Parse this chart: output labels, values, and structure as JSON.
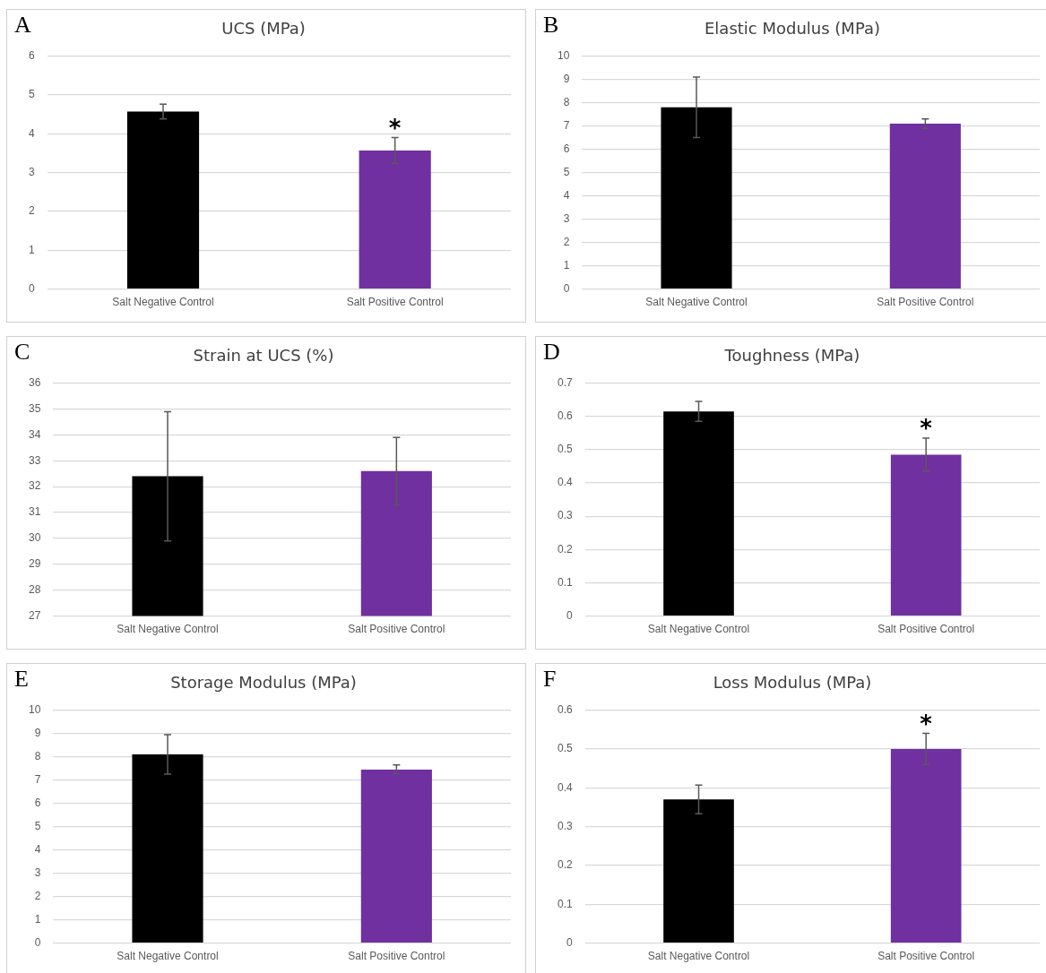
{
  "chart_data": [
    {
      "type": "bar",
      "title": "UCS (MPa)",
      "categories": [
        "Salt Negative Control",
        "Salt Positive Control"
      ],
      "values": [
        4.57,
        3.57
      ],
      "errors": [
        0.19,
        0.33
      ],
      "colors": [
        "#000000",
        "#7030a0"
      ],
      "ylim": [
        0,
        6
      ],
      "yticks": [
        0,
        1,
        2,
        3,
        4,
        5,
        6
      ],
      "grid": "y",
      "legend": false,
      "annotations": [
        "A",
        "*"
      ]
    },
    {
      "type": "bar",
      "title": "Elastic Modulus (MPa)",
      "categories": [
        "Salt Negative Control",
        "Salt Positive Control"
      ],
      "values": [
        7.8,
        7.1
      ],
      "errors": [
        1.3,
        0.2
      ],
      "colors": [
        "#000000",
        "#7030a0"
      ],
      "ylim": [
        0,
        10
      ],
      "yticks": [
        0,
        1,
        2,
        3,
        4,
        5,
        6,
        7,
        8,
        9,
        10
      ],
      "grid": "y",
      "legend": false,
      "annotations": [
        "B"
      ]
    },
    {
      "type": "bar",
      "title": "Strain at UCS (%)",
      "categories": [
        "Salt Negative Control",
        "Salt Positive Control"
      ],
      "values": [
        32.4,
        32.6
      ],
      "errors": [
        2.5,
        1.3
      ],
      "colors": [
        "#000000",
        "#7030a0"
      ],
      "ylim": [
        27,
        36
      ],
      "yticks": [
        27,
        28,
        29,
        30,
        31,
        32,
        33,
        34,
        35,
        36
      ],
      "grid": "y",
      "legend": false,
      "annotations": [
        "C"
      ]
    },
    {
      "type": "bar",
      "title": "Toughness (MPa)",
      "categories": [
        "Salt Negative Control",
        "Salt Positive Control"
      ],
      "values": [
        0.615,
        0.485
      ],
      "errors": [
        0.03,
        0.05
      ],
      "colors": [
        "#000000",
        "#7030a0"
      ],
      "ylim": [
        0,
        0.7
      ],
      "yticks": [
        0,
        0.1,
        0.2,
        0.3,
        0.4,
        0.5,
        0.6,
        0.7
      ],
      "grid": "y",
      "legend": false,
      "annotations": [
        "D",
        "*"
      ]
    },
    {
      "type": "bar",
      "title": "Storage Modulus (MPa)",
      "categories": [
        "Salt Negative Control",
        "Salt Positive Control"
      ],
      "values": [
        8.1,
        7.45
      ],
      "errors": [
        0.85,
        0.2
      ],
      "colors": [
        "#000000",
        "#7030a0"
      ],
      "ylim": [
        0,
        10
      ],
      "yticks": [
        0,
        1,
        2,
        3,
        4,
        5,
        6,
        7,
        8,
        9,
        10
      ],
      "grid": "y",
      "legend": false,
      "annotations": [
        "E"
      ]
    },
    {
      "type": "bar",
      "title": "Loss Modulus (MPa)",
      "categories": [
        "Salt Negative Control",
        "Salt Positive Control"
      ],
      "values": [
        0.37,
        0.5
      ],
      "errors": [
        0.037,
        0.04
      ],
      "colors": [
        "#000000",
        "#7030a0"
      ],
      "ylim": [
        0,
        0.6
      ],
      "yticks": [
        0,
        0.1,
        0.2,
        0.3,
        0.4,
        0.5,
        0.6
      ],
      "grid": "y",
      "legend": false,
      "annotations": [
        "F",
        "*"
      ]
    }
  ]
}
